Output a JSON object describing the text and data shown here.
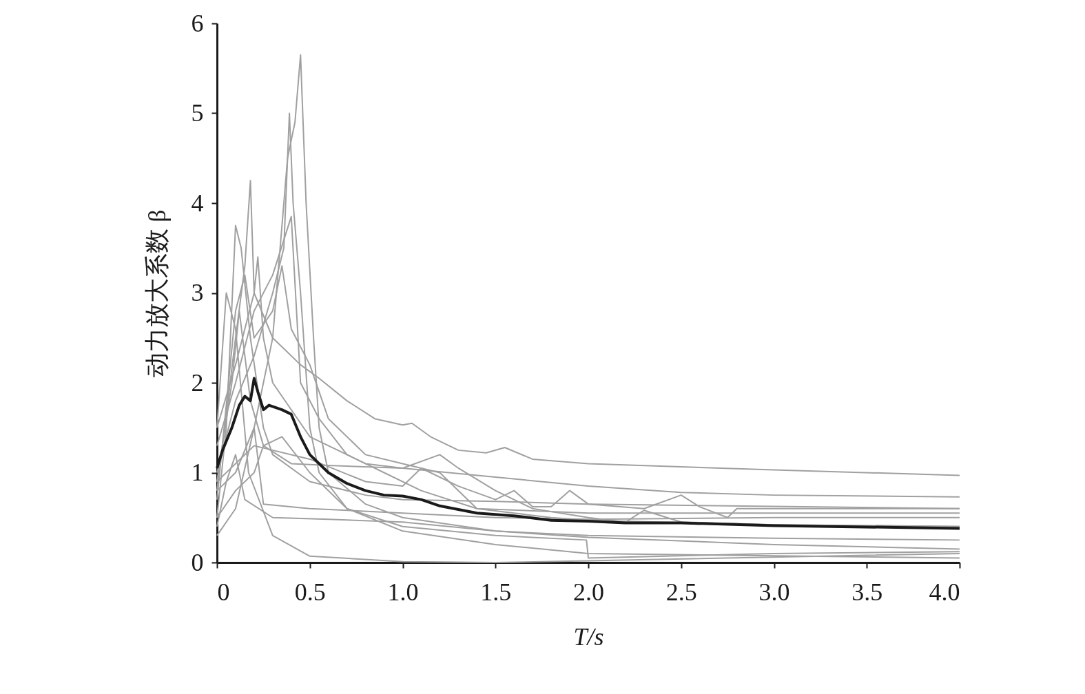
{
  "chart_data": {
    "type": "line",
    "xlabel": "T/s",
    "ylabel": "动力放大系数 β",
    "xlim": [
      0,
      4
    ],
    "ylim": [
      0,
      6
    ],
    "xticks": [
      0,
      {
        "value": 0.5,
        "label": "0.5"
      },
      {
        "value": 1,
        "label": "1.0"
      },
      {
        "value": 1.5,
        "label": "1.5"
      },
      {
        "value": 2,
        "label": "2.0"
      },
      {
        "value": 2.5,
        "label": "2.5"
      },
      {
        "value": 3,
        "label": "3.0"
      },
      {
        "value": 3.5,
        "label": "3.5"
      },
      {
        "value": 4,
        "label": "4.0"
      }
    ],
    "yticks": [
      0,
      1,
      2,
      3,
      4,
      5,
      6
    ],
    "grid": false,
    "marker": "none",
    "line_style": "solid",
    "series": [
      {
        "color": "#a0a0a0",
        "x": [
          0,
          0.1,
          0.2,
          0.3,
          0.45,
          0.55,
          0.7,
          0.85,
          1.0,
          1.05,
          1.15,
          1.3,
          1.45,
          1.55,
          1.7,
          2.0,
          3.0,
          4.0
        ],
        "values": [
          1.5,
          2.2,
          3.0,
          2.5,
          2.2,
          2.05,
          1.8,
          1.6,
          1.53,
          1.55,
          1.4,
          1.25,
          1.22,
          1.28,
          1.15,
          1.1,
          1.03,
          0.97
        ]
      },
      {
        "color": "#a0a0a0",
        "x": [
          0,
          0.1,
          0.2,
          0.3,
          0.38,
          0.42,
          0.45,
          0.48,
          0.52,
          0.55,
          0.6,
          0.8,
          1.0,
          1.5,
          2.0,
          3.0,
          4.0
        ],
        "values": [
          0.8,
          1.0,
          1.5,
          2.5,
          4.5,
          4.9,
          5.65,
          4.0,
          2.5,
          1.5,
          1.0,
          0.65,
          0.5,
          0.35,
          0.28,
          0.2,
          0.15
        ]
      },
      {
        "color": "#a0a0a0",
        "x": [
          0,
          0.1,
          0.2,
          0.3,
          0.36,
          0.39,
          0.41,
          0.45,
          0.5,
          0.55,
          0.7,
          1.0,
          1.5,
          2.0,
          4.0
        ],
        "values": [
          1.0,
          1.8,
          2.3,
          3.0,
          3.5,
          5.0,
          4.0,
          3.0,
          1.5,
          1.0,
          0.6,
          0.35,
          0.2,
          0.1,
          0.05
        ]
      },
      {
        "color": "#a0a0a0",
        "x": [
          0,
          0.05,
          0.1,
          0.13,
          0.18,
          0.25,
          0.3,
          0.5,
          0.8,
          1.0,
          1.5,
          2.0,
          4.0
        ],
        "values": [
          0.5,
          1.5,
          3.75,
          3.5,
          2.5,
          1.5,
          1.2,
          0.9,
          0.75,
          0.7,
          0.68,
          0.65,
          0.6
        ]
      },
      {
        "color": "#a0a0a0",
        "x": [
          0,
          0.1,
          0.15,
          0.18,
          0.2,
          0.22,
          0.25,
          0.3,
          0.5,
          0.8,
          1.0,
          1.2,
          1.3,
          1.5,
          1.7,
          2.0,
          2.2,
          2.3,
          2.5,
          3.0,
          4.0
        ],
        "values": [
          0.8,
          2.5,
          3.3,
          4.25,
          3.0,
          3.4,
          2.5,
          2.0,
          1.4,
          1.1,
          1.05,
          1.2,
          1.05,
          0.8,
          0.6,
          0.5,
          0.45,
          0.58,
          0.45,
          0.42,
          0.4
        ]
      },
      {
        "color": "#a0a0a0",
        "x": [
          0,
          0.2,
          0.5,
          0.8,
          1.0,
          1.1,
          1.3,
          1.5,
          1.6,
          1.7,
          1.8,
          1.9,
          2.0,
          2.3,
          2.5,
          2.6,
          2.75,
          2.8,
          4.0
        ],
        "values": [
          0.9,
          1.3,
          1.15,
          0.9,
          0.85,
          1.05,
          0.85,
          0.7,
          0.8,
          0.62,
          0.62,
          0.8,
          0.65,
          0.6,
          0.75,
          0.62,
          0.5,
          0.6,
          0.6
        ]
      },
      {
        "color": "#a0a0a0",
        "x": [
          0,
          0.05,
          0.1,
          0.17,
          0.3,
          0.5,
          1.0,
          1.5,
          2.0,
          4.0
        ],
        "values": [
          1.5,
          3.0,
          2.6,
          1.0,
          0.3,
          0.07,
          0.01,
          0.0,
          0.02,
          0.1
        ]
      },
      {
        "color": "#a0a0a0",
        "x": [
          0,
          0.1,
          0.2,
          0.25,
          0.4,
          0.6,
          1.0,
          1.5,
          2.0,
          2.5,
          3.0,
          4.0
        ],
        "values": [
          0.5,
          0.8,
          1.0,
          1.3,
          1.1,
          1.08,
          1.05,
          0.95,
          0.85,
          0.78,
          0.75,
          0.73
        ]
      },
      {
        "color": "#a0a0a0",
        "x": [
          0,
          0.1,
          0.2,
          0.25,
          0.5,
          1.0,
          1.5,
          2.0,
          3.0,
          4.0
        ],
        "values": [
          0.3,
          0.6,
          1.5,
          0.65,
          0.6,
          0.55,
          0.5,
          0.48,
          0.5,
          0.5
        ]
      },
      {
        "color": "#a0a0a0",
        "x": [
          0,
          0.05,
          0.1,
          0.15,
          0.3,
          0.6,
          1.0,
          1.5,
          2.0,
          3.0,
          4.0
        ],
        "values": [
          0.4,
          0.9,
          1.2,
          0.7,
          0.5,
          0.48,
          0.45,
          0.35,
          0.3,
          0.27,
          0.25
        ]
      },
      {
        "color": "#a0a0a0",
        "x": [
          0,
          0.1,
          0.15,
          0.2,
          0.3,
          0.35,
          0.4,
          0.5,
          0.6,
          0.8,
          1.0,
          1.2,
          1.4,
          1.6,
          1.8,
          2.0,
          3.0,
          4.0
        ],
        "values": [
          0.7,
          2.8,
          3.2,
          2.5,
          2.8,
          3.3,
          2.6,
          2.2,
          1.6,
          1.2,
          1.1,
          1.0,
          0.6,
          0.55,
          0.5,
          0.47,
          0.42,
          0.4
        ]
      },
      {
        "color": "#a0a0a0",
        "x": [
          0,
          0.08,
          0.12,
          0.18,
          0.25,
          0.35,
          0.5,
          0.7,
          1.0,
          1.5,
          1.99,
          2.0,
          3.0,
          4.0
        ],
        "values": [
          0.9,
          2.0,
          2.8,
          1.8,
          1.3,
          1.4,
          1.0,
          0.6,
          0.4,
          0.3,
          0.25,
          0.05,
          0.1,
          0.12
        ]
      },
      {
        "color": "#a0a0a0",
        "x": [
          0,
          0.1,
          0.2,
          0.3,
          0.4,
          0.45,
          0.55,
          0.7,
          0.9,
          1.1,
          1.4,
          2.0,
          2.5,
          3.0,
          4.0
        ],
        "values": [
          1.3,
          2.0,
          2.8,
          3.2,
          3.85,
          2.0,
          1.6,
          1.2,
          1.0,
          0.8,
          0.6,
          0.55,
          0.55,
          0.55,
          0.55
        ]
      },
      {
        "color": "#1a1a1a",
        "x": [
          0,
          0.03,
          0.08,
          0.12,
          0.15,
          0.18,
          0.2,
          0.22,
          0.25,
          0.28,
          0.35,
          0.4,
          0.45,
          0.5,
          0.6,
          0.7,
          0.8,
          0.9,
          1.0,
          1.1,
          1.2,
          1.4,
          1.6,
          1.8,
          2.0,
          2.2,
          2.5,
          3.0,
          4.0
        ],
        "values": [
          1.05,
          1.25,
          1.5,
          1.75,
          1.85,
          1.8,
          2.05,
          1.9,
          1.7,
          1.75,
          1.7,
          1.65,
          1.4,
          1.2,
          1.0,
          0.88,
          0.8,
          0.75,
          0.74,
          0.7,
          0.63,
          0.55,
          0.52,
          0.47,
          0.46,
          0.44,
          0.44,
          0.41,
          0.38
        ]
      }
    ]
  }
}
